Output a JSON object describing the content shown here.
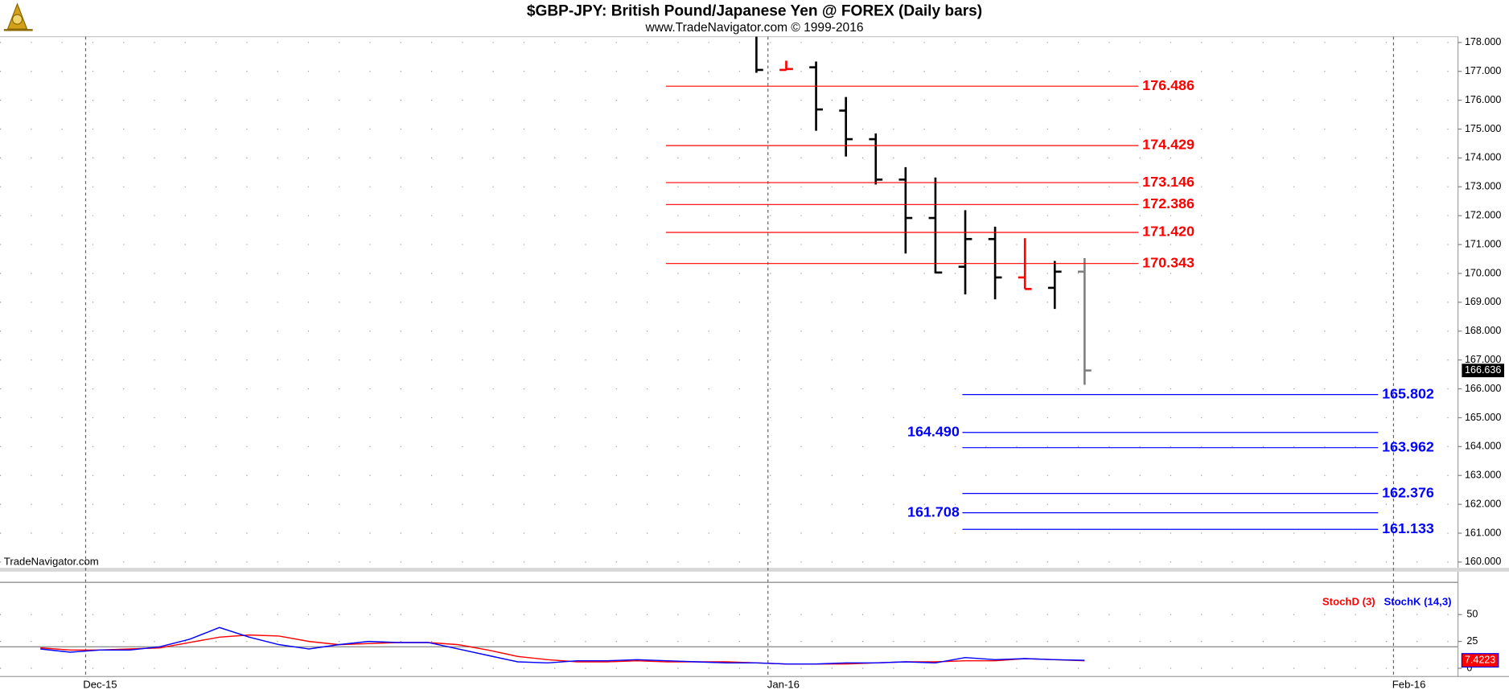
{
  "chart_data": [
    {
      "type": "ohlc",
      "title": "$GBP-JPY:  British Pound/Japanese Yen @ FOREX  (Daily bars)",
      "subtitle": "www.TradeNavigator.com © 1999-2016",
      "watermark": "TradeNavigator.com",
      "open": [
        178.4,
        177.05,
        177.14,
        175.64,
        174.65,
        173.25,
        171.92,
        170.23,
        171.19,
        169.86,
        169.5,
        170.06
      ],
      "high": [
        178.6,
        177.37,
        177.34,
        176.11,
        174.85,
        173.68,
        173.32,
        172.19,
        171.62,
        171.22,
        170.43,
        170.53
      ],
      "low": [
        176.95,
        177.04,
        174.94,
        174.05,
        173.08,
        170.69,
        170.0,
        169.27,
        169.1,
        169.46,
        168.77,
        166.14
      ],
      "close": [
        177.05,
        177.08,
        175.68,
        174.65,
        173.25,
        171.92,
        170.03,
        171.19,
        169.86,
        169.46,
        170.06,
        166.636
      ],
      "colors": [
        "#000000",
        "#ff0000",
        "#000000",
        "#000000",
        "#000000",
        "#000000",
        "#000000",
        "#000000",
        "#000000",
        "#ff0000",
        "#000000",
        "#808080"
      ],
      "last_label": "166.636",
      "levels": [
        {
          "color": "#ff0000",
          "values": [
            176.486,
            174.429,
            173.146,
            172.386,
            171.42,
            170.343
          ],
          "value_labels": [
            "176.486",
            "174.429",
            "173.146",
            "172.386",
            "171.420",
            "170.343"
          ],
          "label_side": [
            "right",
            "right",
            "right",
            "right",
            "right",
            "right"
          ]
        },
        {
          "color": "#0000ff",
          "values": [
            165.802,
            164.49,
            163.962,
            162.376,
            161.708,
            161.133
          ],
          "value_labels": [
            "165.802",
            "164.490",
            "163.962",
            "162.376",
            "161.708",
            "161.133"
          ],
          "label_side": [
            "right",
            "left",
            "right",
            "right",
            "left",
            "right"
          ]
        }
      ],
      "ylim": [
        159.8,
        178.2
      ],
      "yticks": [
        {
          "value": 160,
          "label": "160.000"
        },
        {
          "value": 161,
          "label": "161.000"
        },
        {
          "value": 162,
          "label": "162.000"
        },
        {
          "value": 163,
          "label": "163.000"
        },
        {
          "value": 164,
          "label": "164.000"
        },
        {
          "value": 165,
          "label": "165.000"
        },
        {
          "value": 166,
          "label": "166.000"
        },
        {
          "value": 167,
          "label": "167.000"
        },
        {
          "value": 168,
          "label": "168.000"
        },
        {
          "value": 169,
          "label": "169.000"
        },
        {
          "value": 170,
          "label": "170.000"
        },
        {
          "value": 171,
          "label": "171.000"
        },
        {
          "value": 172,
          "label": "172.000"
        },
        {
          "value": 173,
          "label": "173.000"
        },
        {
          "value": 174,
          "label": "174.000"
        },
        {
          "value": 175,
          "label": "175.000"
        },
        {
          "value": 176,
          "label": "176.000"
        },
        {
          "value": 177,
          "label": "177.000"
        },
        {
          "value": 178,
          "label": "178.000"
        }
      ],
      "grid": true
    },
    {
      "type": "line",
      "series": [
        {
          "name": "StochK (14,3)",
          "color": "#0000ff",
          "values": [
            18,
            15,
            17,
            17,
            20,
            27,
            38,
            29,
            22,
            18,
            22,
            25,
            24,
            24,
            18,
            12,
            6,
            5,
            7,
            7,
            8,
            7,
            6,
            5,
            5,
            4,
            4,
            5,
            5,
            6,
            5,
            10,
            8,
            9,
            8,
            7.4223
          ]
        },
        {
          "name": "StochD (3)",
          "color": "#ff0000",
          "values": [
            19,
            17,
            17,
            18,
            19,
            24,
            29,
            31,
            30,
            25,
            22,
            23,
            24,
            24,
            22,
            17,
            11,
            8,
            6,
            6,
            7,
            6,
            6,
            6,
            5,
            4,
            4,
            4,
            5,
            6,
            6,
            7,
            7,
            9,
            8,
            7
          ]
        }
      ],
      "last_label": "7.4223",
      "levels": [
        20,
        80
      ],
      "ylim": [
        -5,
        90
      ],
      "yticks": [
        0,
        25,
        50
      ],
      "date_labels": [
        "Dec-15",
        "Jan-16",
        "Feb-16"
      ],
      "grid": true
    }
  ]
}
